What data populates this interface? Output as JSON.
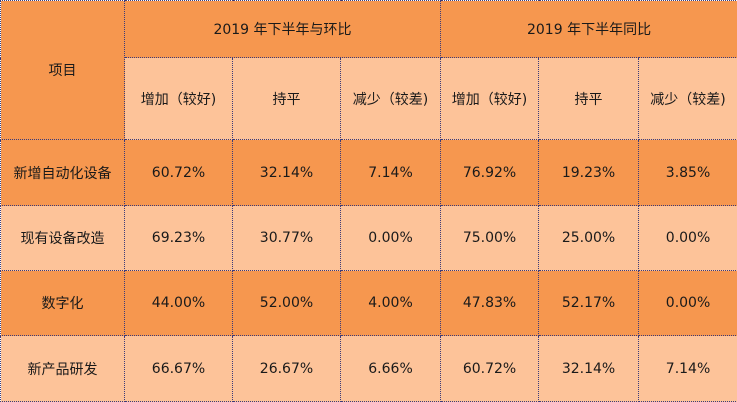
{
  "table": {
    "corner_header": "项目",
    "group_headers": [
      "2019 年下半年与环比",
      "2019 年下半年同比"
    ],
    "sub_headers": [
      "增加（较好)",
      "持平",
      "减少（较差)",
      "增加（较好)",
      "持平",
      "减少（较差)"
    ],
    "rows": [
      {
        "label": "新增自动化设备",
        "values": [
          "60.72%",
          "32.14%",
          "7.14%",
          "76.92%",
          "19.23%",
          "3.85%"
        ]
      },
      {
        "label": "现有设备改造",
        "values": [
          "69.23%",
          "30.77%",
          "0.00%",
          "75.00%",
          "25.00%",
          "0.00%"
        ]
      },
      {
        "label": "数字化",
        "values": [
          "44.00%",
          "52.00%",
          "4.00%",
          "47.83%",
          "52.17%",
          "0.00%"
        ]
      },
      {
        "label": "新产品研发",
        "values": [
          "66.67%",
          "26.67%",
          "6.66%",
          "60.72%",
          "32.14%",
          "7.14%"
        ]
      }
    ],
    "colors": {
      "dark_orange": "#f6974f",
      "light_orange": "#fdc399",
      "grid_line": "#3b3b7a"
    }
  }
}
